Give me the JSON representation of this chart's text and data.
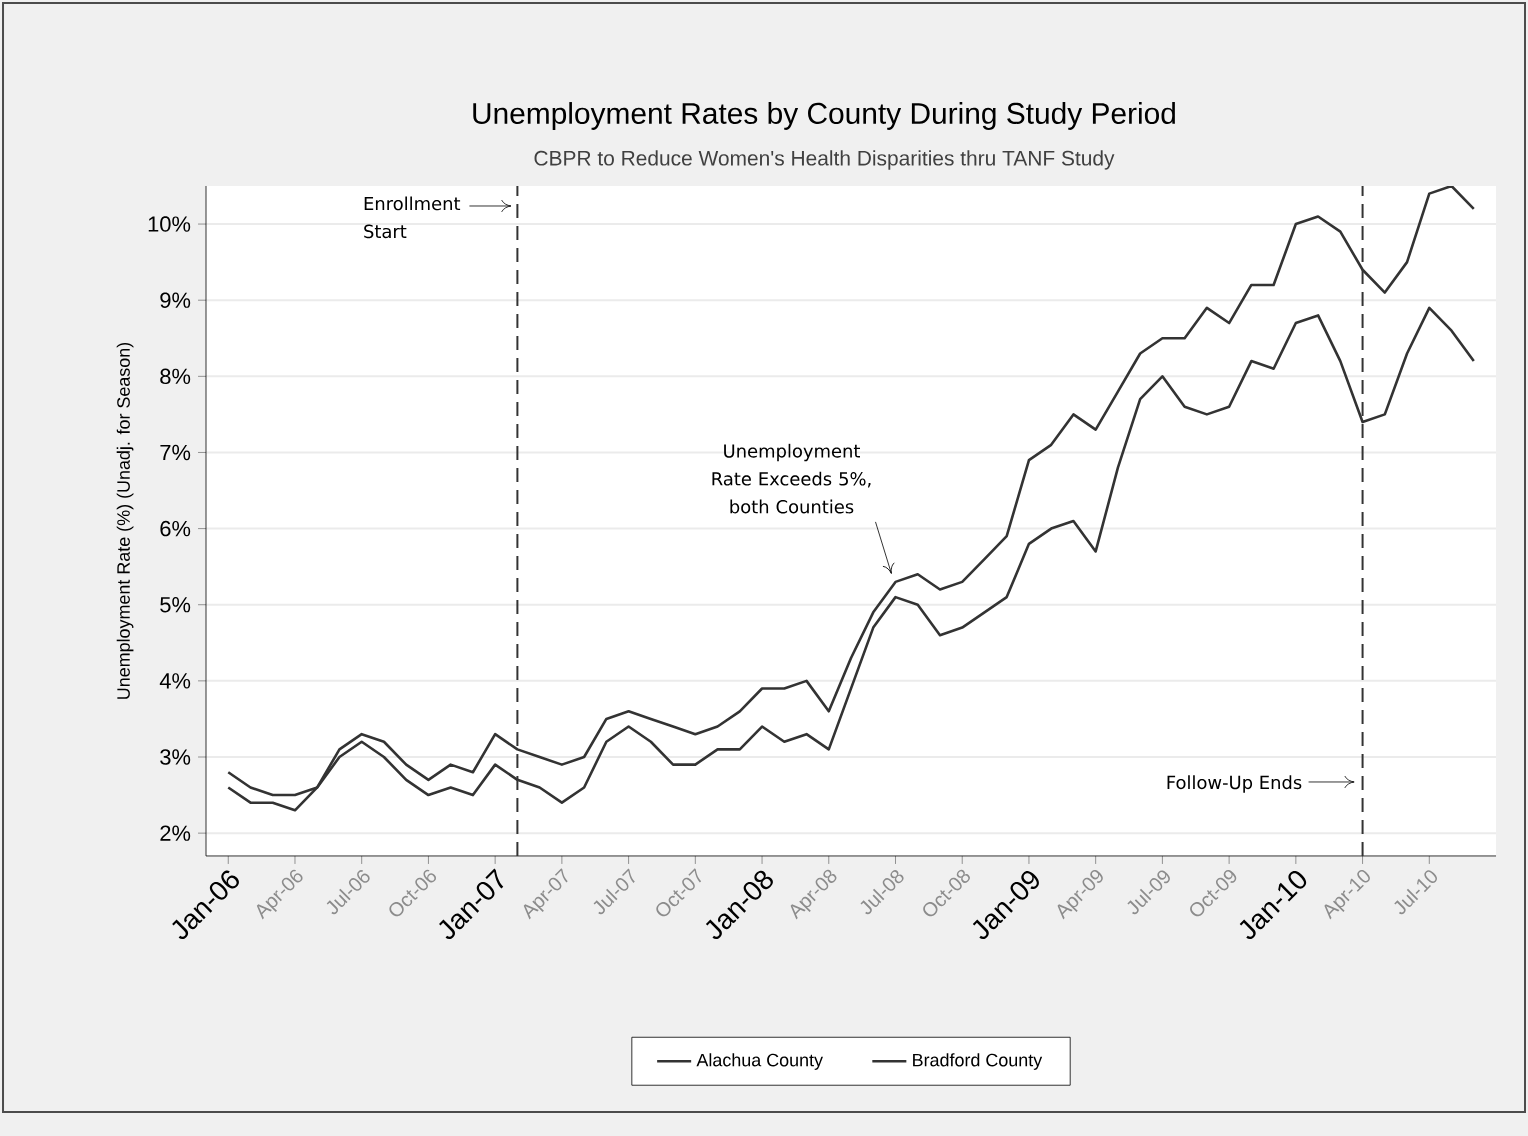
{
  "chart_data": {
    "type": "line",
    "title": "Unemployment Rates by County During Study Period",
    "subtitle": "CBPR to Reduce Women's Health Disparities thru TANF Study",
    "ylabel": "Unemployment Rate (%) (Unadj. for Season)",
    "x": [
      "2006-01",
      "2006-02",
      "2006-03",
      "2006-04",
      "2006-05",
      "2006-06",
      "2006-07",
      "2006-08",
      "2006-09",
      "2006-10",
      "2006-11",
      "2006-12",
      "2007-01",
      "2007-02",
      "2007-03",
      "2007-04",
      "2007-05",
      "2007-06",
      "2007-07",
      "2007-08",
      "2007-09",
      "2007-10",
      "2007-11",
      "2007-12",
      "2008-01",
      "2008-02",
      "2008-03",
      "2008-04",
      "2008-05",
      "2008-06",
      "2008-07",
      "2008-08",
      "2008-09",
      "2008-10",
      "2008-11",
      "2008-12",
      "2009-01",
      "2009-02",
      "2009-03",
      "2009-04",
      "2009-05",
      "2009-06",
      "2009-07",
      "2009-08",
      "2009-09",
      "2009-10",
      "2009-11",
      "2009-12",
      "2010-01",
      "2010-02",
      "2010-03",
      "2010-04",
      "2010-05",
      "2010-06",
      "2010-07",
      "2010-08",
      "2010-09"
    ],
    "series": [
      {
        "name": "Alachua County",
        "color": "#333333",
        "values": [
          2.6,
          2.4,
          2.4,
          2.3,
          2.6,
          3.0,
          3.2,
          3.0,
          2.7,
          2.5,
          2.6,
          2.5,
          2.9,
          2.7,
          2.6,
          2.4,
          2.6,
          3.2,
          3.4,
          3.2,
          2.9,
          2.9,
          3.1,
          3.1,
          3.4,
          3.2,
          3.3,
          3.1,
          3.9,
          4.7,
          5.1,
          5.0,
          4.6,
          4.7,
          4.9,
          5.1,
          5.8,
          6.0,
          6.1,
          5.7,
          6.8,
          7.7,
          8.0,
          7.6,
          7.5,
          7.6,
          8.2,
          8.1,
          8.7,
          8.8,
          8.2,
          7.4,
          7.5,
          8.3,
          8.9,
          8.6,
          8.2
        ]
      },
      {
        "name": "Bradford County",
        "color": "#333333",
        "values": [
          2.8,
          2.6,
          2.5,
          2.5,
          2.6,
          3.1,
          3.3,
          3.2,
          2.9,
          2.7,
          2.9,
          2.8,
          3.3,
          3.1,
          3.0,
          2.9,
          3.0,
          3.5,
          3.6,
          3.5,
          3.4,
          3.3,
          3.4,
          3.6,
          3.9,
          3.9,
          4.0,
          3.6,
          4.3,
          4.9,
          5.3,
          5.4,
          5.2,
          5.3,
          5.6,
          5.9,
          6.9,
          7.1,
          7.5,
          7.3,
          7.8,
          8.3,
          8.5,
          8.5,
          8.9,
          8.7,
          9.2,
          9.2,
          10.0,
          10.1,
          9.9,
          9.4,
          9.1,
          9.5,
          10.4,
          10.5,
          10.2
        ]
      }
    ],
    "xlim": [
      "2005-12",
      "2010-10"
    ],
    "xticks": [
      {
        "value": "2006-01",
        "label": "Jan-06"
      },
      {
        "value": "2006-04",
        "label": "Apr-06"
      },
      {
        "value": "2006-07",
        "label": "Jul-06"
      },
      {
        "value": "2006-10",
        "label": "Oct-06"
      },
      {
        "value": "2007-01",
        "label": "Jan-07"
      },
      {
        "value": "2007-04",
        "label": "Apr-07"
      },
      {
        "value": "2007-07",
        "label": "Jul-07"
      },
      {
        "value": "2007-10",
        "label": "Oct-07"
      },
      {
        "value": "2008-01",
        "label": "Jan-08"
      },
      {
        "value": "2008-04",
        "label": "Apr-08"
      },
      {
        "value": "2008-07",
        "label": "Jul-08"
      },
      {
        "value": "2008-10",
        "label": "Oct-08"
      },
      {
        "value": "2009-01",
        "label": "Jan-09"
      },
      {
        "value": "2009-04",
        "label": "Apr-09"
      },
      {
        "value": "2009-07",
        "label": "Jul-09"
      },
      {
        "value": "2009-10",
        "label": "Oct-09"
      },
      {
        "value": "2010-01",
        "label": "Jan-10"
      },
      {
        "value": "2010-04",
        "label": "Apr-10"
      },
      {
        "value": "2010-07",
        "label": "Jul-10"
      }
    ],
    "ylim": [
      1.7,
      10.5
    ],
    "yticks": [
      {
        "value": 2,
        "label": "2%"
      },
      {
        "value": 3,
        "label": "3%"
      },
      {
        "value": 4,
        "label": "4%"
      },
      {
        "value": 5,
        "label": "5%"
      },
      {
        "value": 6,
        "label": "6%"
      },
      {
        "value": 7,
        "label": "7%"
      },
      {
        "value": 8,
        "label": "8%"
      },
      {
        "value": 9,
        "label": "9%"
      },
      {
        "value": 10,
        "label": "10%"
      }
    ],
    "ref_lines": [
      {
        "axis": "x",
        "value": "2007-02",
        "label": "Enrollment Start",
        "line_style": "dashed"
      },
      {
        "axis": "x",
        "value": "2010-04",
        "label": "Follow-Up Ends",
        "line_style": "dashed"
      }
    ],
    "annotations": [
      {
        "text": "Unemployment Rate Exceeds 5%, both Counties",
        "x": "2008-07",
        "y": 5.3
      }
    ],
    "grid": "y",
    "legend": "bottom",
    "marker": "none",
    "line_style": "solid"
  }
}
